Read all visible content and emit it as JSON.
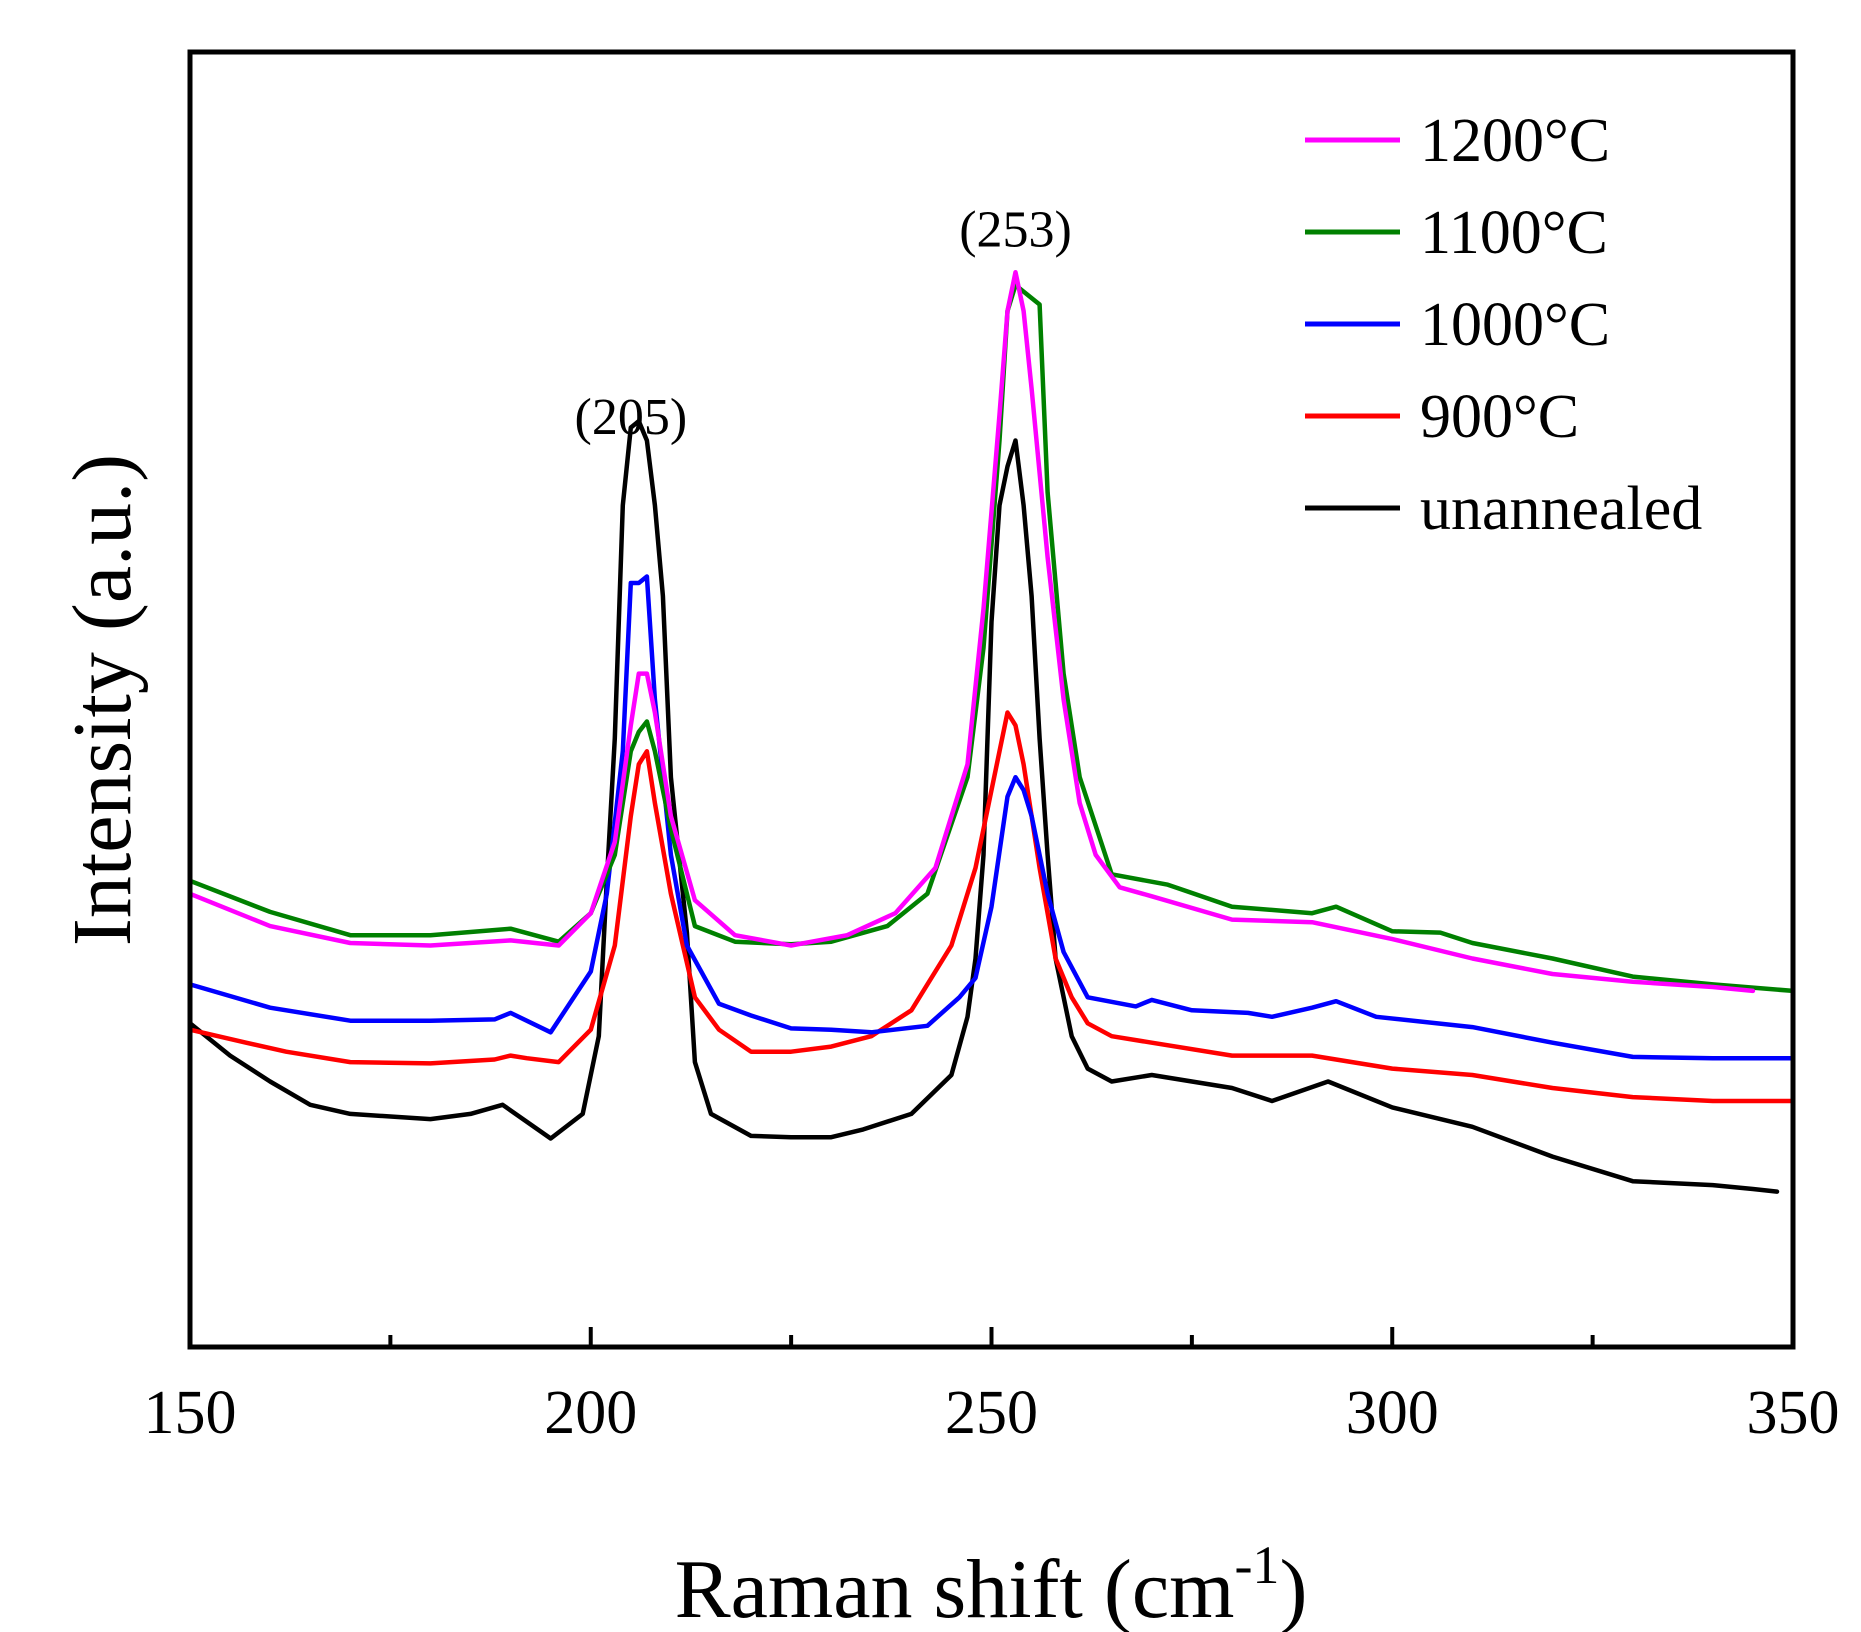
{
  "chart_data": {
    "type": "line",
    "title": "",
    "xlabel": {
      "base": "Raman shift (cm",
      "superscript": "-1",
      "suffix": ")"
    },
    "ylabel": "Intensity (a.u.)",
    "xlim": [
      150,
      350
    ],
    "ylim": [
      0,
      100
    ],
    "x_ticks": [
      150,
      200,
      250,
      300,
      350
    ],
    "x_minor_ticks": [
      175,
      225,
      275,
      325
    ],
    "y_ticks_shown": false,
    "grid": false,
    "legend_position": "top-right",
    "annotations": [
      {
        "text": "(205)",
        "x": 205,
        "y": 70.5
      },
      {
        "text": "(253)",
        "x": 253,
        "y": 85
      }
    ],
    "series": [
      {
        "name": "1200°C",
        "color": "#ff00ff",
        "points": [
          [
            150,
            35
          ],
          [
            160,
            32.5
          ],
          [
            170,
            31.2
          ],
          [
            180,
            31
          ],
          [
            190,
            31.4
          ],
          [
            196,
            31
          ],
          [
            200,
            33.5
          ],
          [
            203,
            39
          ],
          [
            205,
            48
          ],
          [
            206,
            52
          ],
          [
            207,
            52
          ],
          [
            208,
            49
          ],
          [
            210,
            41
          ],
          [
            213,
            34.5
          ],
          [
            218,
            31.8
          ],
          [
            225,
            31
          ],
          [
            232,
            31.8
          ],
          [
            238,
            33.5
          ],
          [
            243,
            37
          ],
          [
            247,
            45
          ],
          [
            249,
            57
          ],
          [
            251,
            72
          ],
          [
            252,
            80
          ],
          [
            253,
            83
          ],
          [
            254,
            80
          ],
          [
            255,
            74
          ],
          [
            257,
            61
          ],
          [
            259,
            50
          ],
          [
            261,
            42
          ],
          [
            263,
            38
          ],
          [
            266,
            35.5
          ],
          [
            270,
            34.8
          ],
          [
            280,
            33
          ],
          [
            290,
            32.8
          ],
          [
            300,
            31.5
          ],
          [
            310,
            30
          ],
          [
            320,
            28.8
          ],
          [
            330,
            28.2
          ],
          [
            340,
            27.8
          ],
          [
            345,
            27.5
          ]
        ]
      },
      {
        "name": "1100°C",
        "color": "#008000",
        "points": [
          [
            150,
            36
          ],
          [
            160,
            33.6
          ],
          [
            170,
            31.8
          ],
          [
            180,
            31.8
          ],
          [
            190,
            32.3
          ],
          [
            196,
            31.3
          ],
          [
            200,
            33.5
          ],
          [
            203,
            38
          ],
          [
            205,
            46
          ],
          [
            206,
            47.5
          ],
          [
            207,
            48.3
          ],
          [
            208,
            46
          ],
          [
            210,
            40
          ],
          [
            213,
            32.5
          ],
          [
            218,
            31.3
          ],
          [
            225,
            31.1
          ],
          [
            230,
            31.3
          ],
          [
            237,
            32.5
          ],
          [
            242,
            35
          ],
          [
            247,
            44
          ],
          [
            249,
            54
          ],
          [
            251,
            70
          ],
          [
            252,
            80
          ],
          [
            253,
            82
          ],
          [
            254,
            81.5
          ],
          [
            256,
            80.5
          ],
          [
            257,
            66
          ],
          [
            259,
            52
          ],
          [
            261,
            44
          ],
          [
            265,
            36.5
          ],
          [
            272,
            35.7
          ],
          [
            280,
            34
          ],
          [
            290,
            33.5
          ],
          [
            293,
            34
          ],
          [
            300,
            32.1
          ],
          [
            306,
            32
          ],
          [
            310,
            31.2
          ],
          [
            320,
            30
          ],
          [
            330,
            28.6
          ],
          [
            340,
            28
          ],
          [
            350,
            27.5
          ]
        ]
      },
      {
        "name": "1000°C",
        "color": "#0000ff",
        "points": [
          [
            150,
            28
          ],
          [
            160,
            26.2
          ],
          [
            170,
            25.2
          ],
          [
            180,
            25.2
          ],
          [
            188,
            25.3
          ],
          [
            190,
            25.8
          ],
          [
            195,
            24.3
          ],
          [
            200,
            29
          ],
          [
            202,
            35
          ],
          [
            204,
            46
          ],
          [
            205,
            59
          ],
          [
            206,
            59
          ],
          [
            207,
            59.5
          ],
          [
            208,
            50
          ],
          [
            210,
            38
          ],
          [
            212,
            31
          ],
          [
            216,
            26.5
          ],
          [
            220,
            25.6
          ],
          [
            225,
            24.6
          ],
          [
            230,
            24.5
          ],
          [
            235,
            24.3
          ],
          [
            242,
            24.8
          ],
          [
            246,
            27
          ],
          [
            248,
            28.5
          ],
          [
            250,
            34
          ],
          [
            252,
            42.5
          ],
          [
            253,
            44
          ],
          [
            254,
            43
          ],
          [
            255,
            41
          ],
          [
            257,
            35
          ],
          [
            259,
            30.5
          ],
          [
            262,
            27
          ],
          [
            268,
            26.3
          ],
          [
            270,
            26.8
          ],
          [
            275,
            26
          ],
          [
            282,
            25.8
          ],
          [
            285,
            25.5
          ],
          [
            290,
            26.2
          ],
          [
            293,
            26.7
          ],
          [
            298,
            25.5
          ],
          [
            310,
            24.7
          ],
          [
            320,
            23.5
          ],
          [
            330,
            22.4
          ],
          [
            340,
            22.3
          ],
          [
            350,
            22.3
          ]
        ]
      },
      {
        "name": "900°C",
        "color": "#ff0000",
        "points": [
          [
            150,
            24.5
          ],
          [
            157,
            23.5
          ],
          [
            162,
            22.8
          ],
          [
            170,
            22
          ],
          [
            180,
            21.9
          ],
          [
            188,
            22.2
          ],
          [
            190,
            22.5
          ],
          [
            192,
            22.3
          ],
          [
            196,
            22
          ],
          [
            200,
            24.5
          ],
          [
            203,
            31
          ],
          [
            205,
            41
          ],
          [
            206,
            45
          ],
          [
            207,
            46
          ],
          [
            208,
            42
          ],
          [
            210,
            35
          ],
          [
            213,
            27
          ],
          [
            216,
            24.5
          ],
          [
            220,
            22.8
          ],
          [
            225,
            22.8
          ],
          [
            230,
            23.2
          ],
          [
            235,
            24
          ],
          [
            240,
            26
          ],
          [
            245,
            31
          ],
          [
            248,
            37
          ],
          [
            250,
            43
          ],
          [
            252,
            49
          ],
          [
            253,
            48
          ],
          [
            254,
            45
          ],
          [
            256,
            37
          ],
          [
            258,
            30
          ],
          [
            260,
            27
          ],
          [
            262,
            25
          ],
          [
            265,
            24
          ],
          [
            270,
            23.5
          ],
          [
            280,
            22.5
          ],
          [
            290,
            22.5
          ],
          [
            300,
            21.5
          ],
          [
            310,
            21
          ],
          [
            320,
            20
          ],
          [
            330,
            19.3
          ],
          [
            340,
            19
          ],
          [
            350,
            19
          ]
        ]
      },
      {
        "name": "unannealed",
        "color": "#000000",
        "points": [
          [
            150,
            25
          ],
          [
            155,
            22.5
          ],
          [
            160,
            20.5
          ],
          [
            165,
            18.7
          ],
          [
            170,
            18
          ],
          [
            180,
            17.6
          ],
          [
            185,
            18
          ],
          [
            189,
            18.7
          ],
          [
            195,
            16.1
          ],
          [
            199,
            18
          ],
          [
            201,
            24
          ],
          [
            202,
            36
          ],
          [
            203,
            47
          ],
          [
            204,
            65
          ],
          [
            205,
            71
          ],
          [
            206,
            71.5
          ],
          [
            207,
            70
          ],
          [
            208,
            65
          ],
          [
            209,
            58
          ],
          [
            210,
            44
          ],
          [
            212,
            32
          ],
          [
            213,
            22
          ],
          [
            215,
            18
          ],
          [
            220,
            16.3
          ],
          [
            225,
            16.2
          ],
          [
            230,
            16.2
          ],
          [
            234,
            16.8
          ],
          [
            240,
            18
          ],
          [
            245,
            21
          ],
          [
            247,
            25.5
          ],
          [
            248,
            30
          ],
          [
            249,
            38
          ],
          [
            250,
            56
          ],
          [
            251,
            65
          ],
          [
            252,
            68
          ],
          [
            253,
            70
          ],
          [
            254,
            65
          ],
          [
            255,
            58
          ],
          [
            256,
            47
          ],
          [
            257,
            38
          ],
          [
            258,
            30
          ],
          [
            260,
            24
          ],
          [
            262,
            21.5
          ],
          [
            265,
            20.5
          ],
          [
            270,
            21
          ],
          [
            275,
            20.5
          ],
          [
            280,
            20
          ],
          [
            285,
            19
          ],
          [
            292,
            20.5
          ],
          [
            300,
            18.5
          ],
          [
            310,
            17
          ],
          [
            320,
            14.7
          ],
          [
            330,
            12.8
          ],
          [
            340,
            12.5
          ],
          [
            345,
            12.2
          ],
          [
            348,
            12
          ]
        ]
      }
    ]
  }
}
